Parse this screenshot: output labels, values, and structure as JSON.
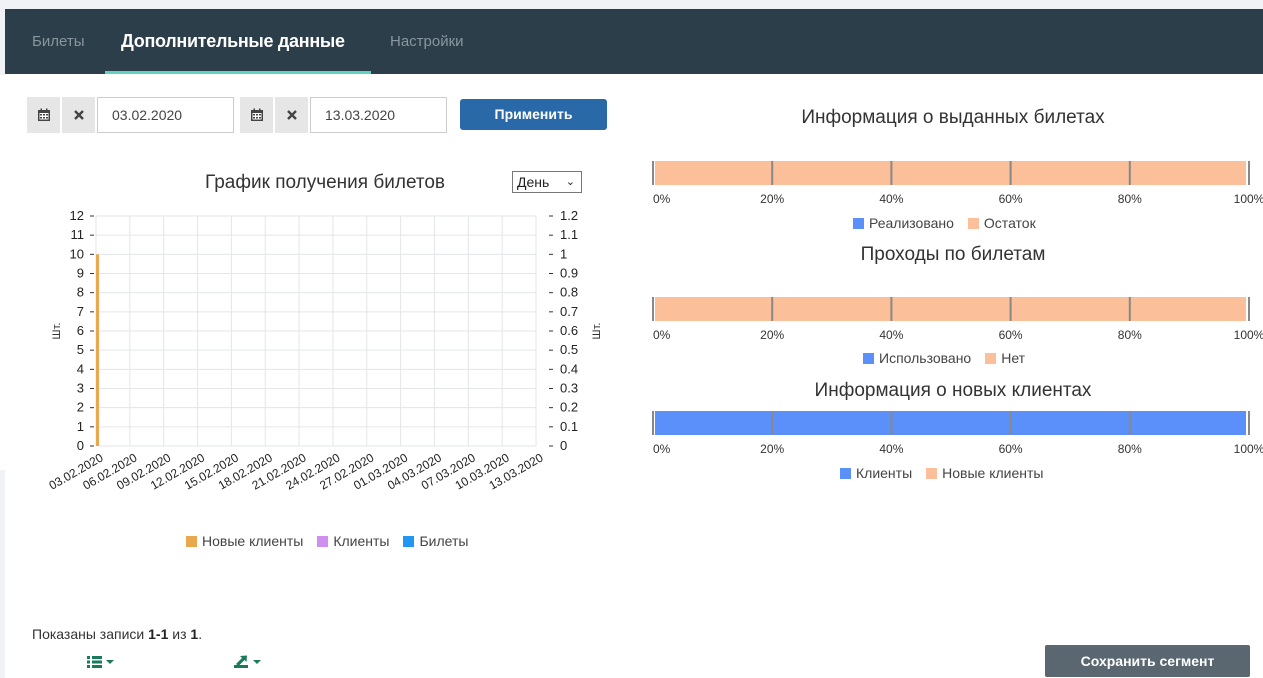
{
  "tabs": [
    {
      "label": "Билеты",
      "active": false
    },
    {
      "label": "Дополнительные данные",
      "active": true
    },
    {
      "label": "Настройки",
      "active": false
    }
  ],
  "filters": {
    "date_from": "03.02.2020",
    "date_to": "13.03.2020",
    "apply_label": "Применить"
  },
  "left_chart": {
    "title": "График получения билетов",
    "period_select": "День"
  },
  "chart_data": [
    {
      "type": "bar",
      "title": "График получения билетов",
      "ylabel": "Шт.",
      "ylabel_right": "Шт.",
      "ylim": [
        0,
        12
      ],
      "ylim_right": [
        0,
        1.2
      ],
      "yticks": [
        "0",
        "1",
        "2",
        "3",
        "4",
        "5",
        "6",
        "7",
        "8",
        "9",
        "10",
        "11",
        "12"
      ],
      "yticks_right": [
        "0",
        "0.1",
        "0.2",
        "0.3",
        "0.4",
        "0.5",
        "0.6",
        "0.7",
        "0.8",
        "0.9",
        "1",
        "1.1",
        "1.2"
      ],
      "categories": [
        "03.02.2020",
        "06.02.2020",
        "09.02.2020",
        "12.02.2020",
        "15.02.2020",
        "18.02.2020",
        "21.02.2020",
        "24.02.2020",
        "27.02.2020",
        "01.03.2020",
        "04.03.2020",
        "07.03.2020",
        "10.03.2020",
        "13.03.2020"
      ],
      "series": [
        {
          "name": "Новые клиенты",
          "color": "#e9a750",
          "values": [
            10,
            0,
            0,
            0,
            0,
            0,
            0,
            0,
            0,
            0,
            0,
            0,
            0,
            0
          ]
        },
        {
          "name": "Клиенты",
          "color": "#cf8fef",
          "values": [
            0,
            0,
            0,
            0,
            0,
            0,
            0,
            0,
            0,
            0,
            0,
            0,
            0,
            0
          ]
        },
        {
          "name": "Билеты",
          "color": "#2196f3",
          "values": [
            0,
            0,
            0,
            0,
            0,
            0,
            0,
            0,
            0,
            0,
            0,
            0,
            0,
            0
          ]
        }
      ],
      "grid": true,
      "legend": "bottom"
    },
    {
      "type": "bar",
      "title": "Информация о выданных билетах",
      "orientation": "horizontal-stacked-percent",
      "xticks": [
        "0%",
        "20%",
        "40%",
        "60%",
        "80%",
        "100%"
      ],
      "series": [
        {
          "name": "Реализовано",
          "color": "#5b8ff9",
          "values": [
            0
          ]
        },
        {
          "name": "Остаток",
          "color": "#fbbf99",
          "values": [
            100
          ]
        }
      ],
      "legend": "bottom"
    },
    {
      "type": "bar",
      "title": "Проходы по билетам",
      "orientation": "horizontal-stacked-percent",
      "xticks": [
        "0%",
        "20%",
        "40%",
        "60%",
        "80%",
        "100%"
      ],
      "series": [
        {
          "name": "Использовано",
          "color": "#5b8ff9",
          "values": [
            0
          ]
        },
        {
          "name": "Нет",
          "color": "#fbbf99",
          "values": [
            100
          ]
        }
      ],
      "legend": "bottom"
    },
    {
      "type": "bar",
      "title": "Информация о новых клиентах",
      "orientation": "horizontal-stacked-percent",
      "xticks": [
        "0%",
        "20%",
        "40%",
        "60%",
        "80%",
        "100%"
      ],
      "series": [
        {
          "name": "Клиенты",
          "color": "#5b8ff9",
          "values": [
            100
          ]
        },
        {
          "name": "Новые клиенты",
          "color": "#fbbf99",
          "values": [
            0
          ]
        }
      ],
      "legend": "bottom"
    }
  ],
  "footer": {
    "records_prefix": "Показаны записи ",
    "records_range": "1-1",
    "records_mid": " из ",
    "records_total": "1",
    "records_suffix": ".",
    "list_icon": "list-icon",
    "export_icon": "export-icon",
    "save_label": "Сохранить сегмент"
  }
}
